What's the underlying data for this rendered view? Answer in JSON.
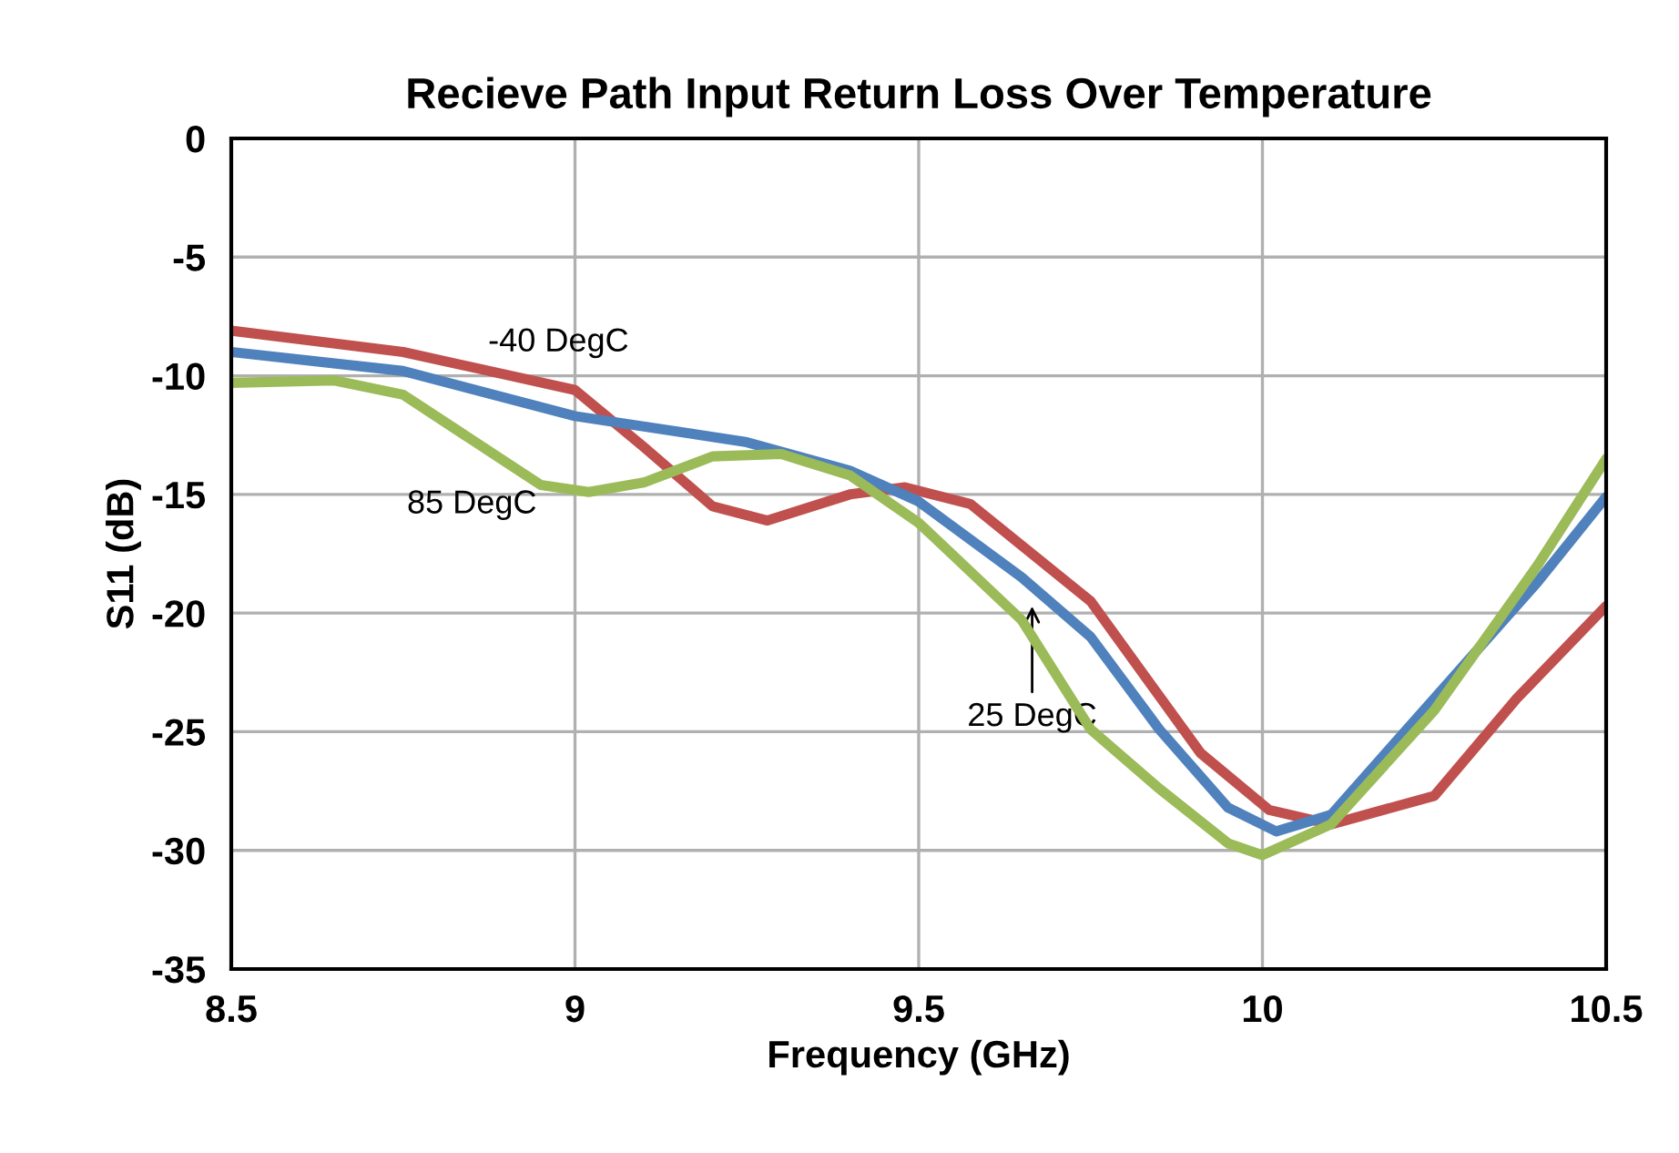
{
  "chart_data": {
    "type": "line",
    "title": "Recieve Path Input Return Loss Over Temperature",
    "xlabel": "Frequency (GHz)",
    "ylabel": "S11 (dB)",
    "xlim": [
      8.5,
      10.5
    ],
    "xticks": [
      8.5,
      9,
      9.5,
      10,
      10.5
    ],
    "ylim": [
      -35,
      0
    ],
    "yticks": [
      -35,
      -30,
      -25,
      -20,
      -15,
      -10,
      -5,
      0
    ],
    "grid": true,
    "legend": false,
    "marker": "none",
    "line_style": "solid",
    "series": [
      {
        "color": "#c0504d",
        "x": [
          8.5,
          8.75,
          9.0,
          9.1,
          9.2,
          9.28,
          9.4,
          9.48,
          9.575,
          9.75,
          9.91,
          10.01,
          10.1,
          10.25,
          10.37,
          10.5
        ],
        "values": [
          -8.1,
          -9.0,
          -10.6,
          -13.0,
          -15.5,
          -16.1,
          -15.0,
          -14.7,
          -15.4,
          -19.5,
          -25.9,
          -28.3,
          -28.9,
          -27.7,
          -23.6,
          -19.7
        ]
      },
      {
        "color": "#4f81bd",
        "x": [
          8.5,
          8.75,
          9.0,
          9.25,
          9.4,
          9.5,
          9.65,
          9.75,
          9.85,
          9.95,
          10.02,
          10.1,
          10.25,
          10.4,
          10.5
        ],
        "values": [
          -9.0,
          -9.8,
          -11.7,
          -12.8,
          -14.0,
          -15.3,
          -18.5,
          -21.0,
          -24.9,
          -28.2,
          -29.2,
          -28.5,
          -23.6,
          -18.7,
          -15.1
        ]
      },
      {
        "color": "#9bbb59",
        "x": [
          8.5,
          8.65,
          8.75,
          8.85,
          8.95,
          9.02,
          9.1,
          9.2,
          9.3,
          9.4,
          9.5,
          9.65,
          9.75,
          9.85,
          9.95,
          10.0,
          10.1,
          10.25,
          10.4,
          10.5
        ],
        "values": [
          -10.3,
          -10.2,
          -10.8,
          -12.7,
          -14.6,
          -14.9,
          -14.5,
          -13.4,
          -13.3,
          -14.2,
          -16.2,
          -20.3,
          -24.9,
          -27.4,
          -29.7,
          -30.2,
          -28.9,
          -24.1,
          -18.0,
          -13.5
        ]
      }
    ],
    "annotations": [
      "-40 DegC",
      "85 DegC",
      {
        "text": "25 DegC",
        "x": 9.665,
        "y": -19.5
      }
    ]
  }
}
